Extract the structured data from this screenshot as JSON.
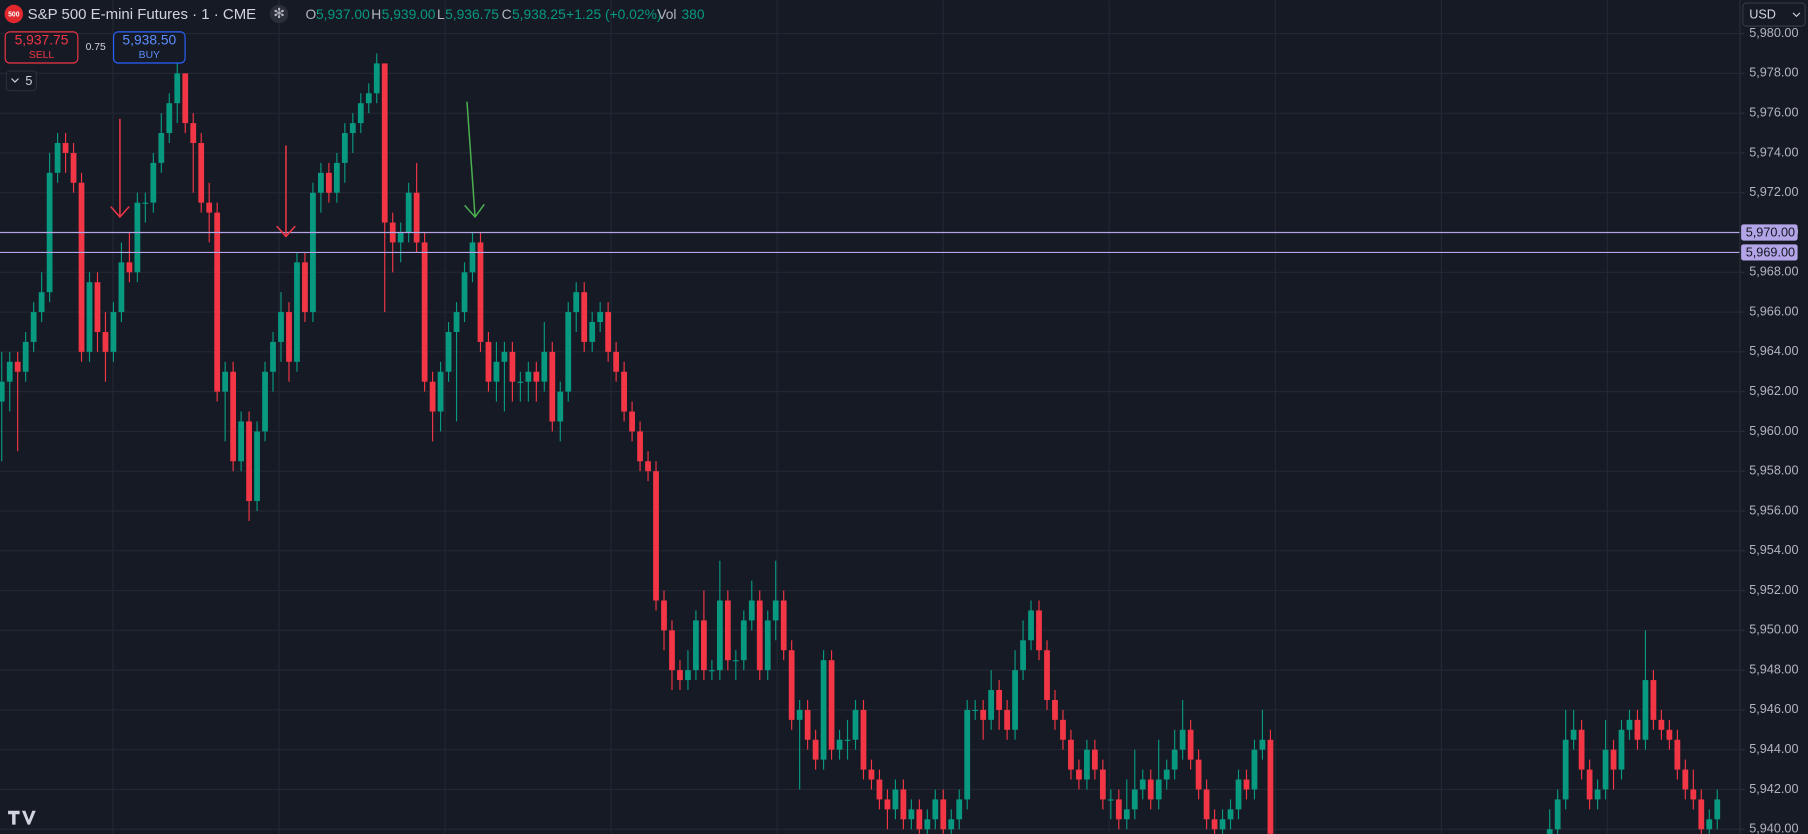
{
  "header": {
    "logo": "500",
    "title": "S&P 500 E-mini Futures · 1 · CME",
    "legend": [
      {
        "label": "O",
        "value": "5,937.00"
      },
      {
        "label": "H",
        "value": "5,939.00"
      },
      {
        "label": "L",
        "value": "5,936.75"
      },
      {
        "label": "C",
        "value": "5,938.25"
      }
    ],
    "change": "+1.25 (+0.02%)",
    "volume": {
      "label": "Vol",
      "value": "380"
    }
  },
  "trade": {
    "sell_price": "5,937.75",
    "sell_label": "SELL",
    "spread": "0.75",
    "buy_price": "5,938.50",
    "buy_label": "BUY"
  },
  "indicators_count": "5",
  "currency": "USD",
  "chart_data": {
    "type": "candlestick",
    "up_color": "#089981",
    "down_color": "#f23645",
    "grid": true,
    "ylim": [
      5939.77,
      5981.68
    ],
    "yticks": [
      {
        "value": 5940,
        "label": "5,940.00"
      },
      {
        "value": 5942,
        "label": "5,942.00"
      },
      {
        "value": 5944,
        "label": "5,944.00"
      },
      {
        "value": 5946,
        "label": "5,946.00"
      },
      {
        "value": 5948,
        "label": "5,948.00"
      },
      {
        "value": 5950,
        "label": "5,950.00"
      },
      {
        "value": 5952,
        "label": "5,952.00"
      },
      {
        "value": 5954,
        "label": "5,954.00"
      },
      {
        "value": 5956,
        "label": "5,956.00"
      },
      {
        "value": 5958,
        "label": "5,958.00"
      },
      {
        "value": 5960,
        "label": "5,960.00"
      },
      {
        "value": 5962,
        "label": "5,962.00"
      },
      {
        "value": 5964,
        "label": "5,964.00"
      },
      {
        "value": 5966,
        "label": "5,966.00"
      },
      {
        "value": 5968,
        "label": "5,968.00"
      },
      {
        "value": 5970,
        "label": "5,970.00"
      },
      {
        "value": 5972,
        "label": "5,972.00"
      },
      {
        "value": 5974,
        "label": "5,974.00"
      },
      {
        "value": 5976,
        "label": "5,976.00"
      },
      {
        "value": 5978,
        "label": "5,978.00"
      },
      {
        "value": 5980,
        "label": "5,980.00"
      }
    ],
    "hline_color": "#b2a4e6",
    "hlines": [
      {
        "value": 5970,
        "label": "5,970.00"
      },
      {
        "value": 5969,
        "label": "5,969.00"
      }
    ],
    "candles": [
      [
        5961.5,
        5964,
        5958.5,
        5962.5
      ],
      [
        5962.5,
        5964,
        5961,
        5963.5
      ],
      [
        5963.5,
        5964,
        5959,
        5963
      ],
      [
        5963,
        5965,
        5962.5,
        5964.5
      ],
      [
        5964.5,
        5966.5,
        5964,
        5966
      ],
      [
        5966,
        5968,
        5965.5,
        5967
      ],
      [
        5967,
        5974,
        5966.5,
        5973
      ],
      [
        5973,
        5975,
        5972.5,
        5974.5
      ],
      [
        5974.5,
        5975,
        5973,
        5974
      ],
      [
        5974,
        5974.5,
        5972,
        5972.5
      ],
      [
        5972.5,
        5973,
        5963.5,
        5964
      ],
      [
        5964,
        5968,
        5963.5,
        5967.5
      ],
      [
        5967.5,
        5968,
        5964,
        5965
      ],
      [
        5965,
        5966,
        5962.5,
        5964
      ],
      [
        5964,
        5966.5,
        5963.5,
        5966
      ],
      [
        5966,
        5969.5,
        5965.5,
        5968.5
      ],
      [
        5968.5,
        5970,
        5967.5,
        5968
      ],
      [
        5968,
        5972,
        5967.5,
        5971.5
      ],
      [
        5971.5,
        5972,
        5970.5,
        5971.5
      ],
      [
        5971.5,
        5974,
        5971,
        5973.5
      ],
      [
        5973.5,
        5976,
        5973,
        5975
      ],
      [
        5975,
        5977,
        5974.5,
        5976.5
      ],
      [
        5976.5,
        5978.5,
        5975.5,
        5978
      ],
      [
        5978,
        5978,
        5975,
        5975.5
      ],
      [
        5975.5,
        5976,
        5972,
        5974.5
      ],
      [
        5974.5,
        5975,
        5971,
        5971.5
      ],
      [
        5971.5,
        5972.5,
        5969.5,
        5971
      ],
      [
        5971,
        5971.5,
        5961.5,
        5962
      ],
      [
        5962,
        5963.5,
        5959.5,
        5963
      ],
      [
        5963,
        5963.5,
        5958,
        5958.5
      ],
      [
        5958.5,
        5961,
        5958,
        5960.5
      ],
      [
        5960.5,
        5961,
        5955.5,
        5956.5
      ],
      [
        5956.5,
        5960.5,
        5956,
        5960
      ],
      [
        5960,
        5963.5,
        5959.5,
        5963
      ],
      [
        5963,
        5965,
        5962,
        5964.5
      ],
      [
        5964.5,
        5967,
        5963.5,
        5966
      ],
      [
        5966,
        5966.5,
        5962.5,
        5963.5
      ],
      [
        5963.5,
        5969,
        5963,
        5968.5
      ],
      [
        5968.5,
        5969,
        5965.5,
        5966
      ],
      [
        5966,
        5972.5,
        5965.5,
        5972
      ],
      [
        5972,
        5973.5,
        5971,
        5973
      ],
      [
        5973,
        5973.5,
        5971.5,
        5972
      ],
      [
        5972,
        5974,
        5971.5,
        5973.5
      ],
      [
        5973.5,
        5975.5,
        5972.5,
        5975
      ],
      [
        5975,
        5976,
        5974,
        5975.5
      ],
      [
        5975.5,
        5977,
        5975,
        5976.5
      ],
      [
        5976.5,
        5977.5,
        5976,
        5977
      ],
      [
        5977,
        5979,
        5976.5,
        5978.5
      ],
      [
        5978.5,
        5978.5,
        5966,
        5970.5
      ],
      [
        5970.5,
        5971,
        5968,
        5969.5
      ],
      [
        5969.5,
        5970.5,
        5968.5,
        5970
      ],
      [
        5970,
        5972.5,
        5969.5,
        5972
      ],
      [
        5972,
        5973.5,
        5969,
        5969.5
      ],
      [
        5969.5,
        5970,
        5962,
        5962.5
      ],
      [
        5962.5,
        5963,
        5959.5,
        5961
      ],
      [
        5961,
        5963.5,
        5960,
        5963
      ],
      [
        5963,
        5965.5,
        5962.5,
        5965
      ],
      [
        5965,
        5966.5,
        5960.5,
        5966
      ],
      [
        5966,
        5968.5,
        5965.5,
        5968
      ],
      [
        5968,
        5970,
        5967.5,
        5969.5
      ],
      [
        5969.5,
        5970,
        5964,
        5964.5
      ],
      [
        5964.5,
        5965,
        5962,
        5962.5
      ],
      [
        5962.5,
        5964.5,
        5961.5,
        5963.5
      ],
      [
        5963.5,
        5964.5,
        5961,
        5964
      ],
      [
        5964,
        5964.5,
        5961.5,
        5962.5
      ],
      [
        5962.5,
        5963,
        5961.5,
        5962.5
      ],
      [
        5962.5,
        5963.5,
        5961.5,
        5963
      ],
      [
        5963,
        5963.5,
        5961.5,
        5962.5
      ],
      [
        5962.5,
        5965.5,
        5962,
        5964
      ],
      [
        5964,
        5964.5,
        5960,
        5960.5
      ],
      [
        5960.5,
        5962.5,
        5959.5,
        5962
      ],
      [
        5962,
        5966.5,
        5961.5,
        5966
      ],
      [
        5966,
        5967.5,
        5965,
        5967
      ],
      [
        5967,
        5967.5,
        5964,
        5964.5
      ],
      [
        5964.5,
        5966,
        5964,
        5965.5
      ],
      [
        5965.5,
        5966.5,
        5965,
        5966
      ],
      [
        5966,
        5966.5,
        5963.5,
        5964
      ],
      [
        5964,
        5964.5,
        5962.5,
        5963
      ],
      [
        5963,
        5963.5,
        5960.5,
        5961
      ],
      [
        5961,
        5961.5,
        5959.5,
        5960
      ],
      [
        5960,
        5960.5,
        5958,
        5958.5
      ],
      [
        5958.5,
        5959,
        5957.5,
        5958
      ],
      [
        5958,
        5958.5,
        5951,
        5951.5
      ],
      [
        5951.5,
        5952,
        5949,
        5950
      ],
      [
        5950,
        5950.5,
        5947,
        5948
      ],
      [
        5948,
        5948.5,
        5947,
        5947.5
      ],
      [
        5947.5,
        5949,
        5947,
        5948
      ],
      [
        5948,
        5951,
        5947.5,
        5950.5
      ],
      [
        5950.5,
        5952,
        5947.5,
        5948
      ],
      [
        5948,
        5948.5,
        5947.5,
        5948
      ],
      [
        5948,
        5953.5,
        5947.5,
        5951.5
      ],
      [
        5951.5,
        5952,
        5948,
        5948.5
      ],
      [
        5948.5,
        5949,
        5947.5,
        5948.5
      ],
      [
        5948.5,
        5951,
        5948,
        5950.5
      ],
      [
        5950.5,
        5952.5,
        5950,
        5951.5
      ],
      [
        5951.5,
        5952,
        5947.5,
        5948
      ],
      [
        5948,
        5951,
        5947.5,
        5950.5
      ],
      [
        5950.5,
        5953.5,
        5949.5,
        5951.5
      ],
      [
        5951.5,
        5952,
        5948.5,
        5949
      ],
      [
        5949,
        5949.5,
        5945,
        5945.5
      ],
      [
        5945.5,
        5946.5,
        5942,
        5946
      ],
      [
        5946,
        5946.5,
        5944,
        5944.5
      ],
      [
        5944.5,
        5945,
        5943,
        5943.5
      ],
      [
        5943.5,
        5949,
        5943,
        5948.5
      ],
      [
        5948.5,
        5949,
        5943.5,
        5944
      ],
      [
        5944,
        5945,
        5943.5,
        5944.5
      ],
      [
        5944.5,
        5945.5,
        5943.5,
        5944.5
      ],
      [
        5944.5,
        5946.5,
        5944,
        5946
      ],
      [
        5946,
        5946.5,
        5942.5,
        5943
      ],
      [
        5943,
        5943.5,
        5942,
        5942.5
      ],
      [
        5942.5,
        5943,
        5941,
        5941.5
      ],
      [
        5941.5,
        5942,
        5940,
        5941
      ],
      [
        5941,
        5942.5,
        5940.5,
        5942
      ],
      [
        5942,
        5942.5,
        5940,
        5940.5
      ],
      [
        5940.5,
        5941.5,
        5940,
        5941
      ],
      [
        5941,
        5941.5,
        5939.5,
        5940
      ],
      [
        5940,
        5941,
        5939.5,
        5940.5
      ],
      [
        5940.5,
        5942,
        5940,
        5941.5
      ],
      [
        5941.5,
        5942,
        5939.5,
        5940
      ],
      [
        5940,
        5941,
        5939.5,
        5940.5
      ],
      [
        5940.5,
        5942,
        5940,
        5941.5
      ],
      [
        5941.5,
        5946.5,
        5941,
        5946
      ],
      [
        5946,
        5946.5,
        5945.5,
        5946
      ],
      [
        5946,
        5946.5,
        5944.5,
        5945.5
      ],
      [
        5945.5,
        5948,
        5945,
        5947
      ],
      [
        5947,
        5947.5,
        5945,
        5946
      ],
      [
        5946,
        5946.5,
        5944.5,
        5945
      ],
      [
        5945,
        5949,
        5944.5,
        5948
      ],
      [
        5948,
        5950.5,
        5947.5,
        5949.5
      ],
      [
        5949.5,
        5951.5,
        5949,
        5951
      ],
      [
        5951,
        5951.5,
        5948.5,
        5949
      ],
      [
        5949,
        5949.5,
        5946,
        5946.5
      ],
      [
        5946.5,
        5947,
        5945,
        5945.5
      ],
      [
        5945.5,
        5946,
        5944,
        5944.5
      ],
      [
        5944.5,
        5945,
        5942.5,
        5943
      ],
      [
        5943,
        5943.5,
        5942,
        5942.5
      ],
      [
        5942.5,
        5944.5,
        5942,
        5944
      ],
      [
        5944,
        5944.5,
        5942.5,
        5943
      ],
      [
        5943,
        5943.5,
        5941,
        5941.5
      ],
      [
        5941.5,
        5942,
        5940.5,
        5941.5
      ],
      [
        5941.5,
        5942,
        5940,
        5940.5
      ],
      [
        5940.5,
        5942.5,
        5940,
        5941
      ],
      [
        5941,
        5944,
        5940.5,
        5942
      ],
      [
        5942,
        5943,
        5941.5,
        5942.5
      ],
      [
        5942.5,
        5943,
        5941,
        5941.5
      ],
      [
        5941.5,
        5944.5,
        5941,
        5942.5
      ],
      [
        5942.5,
        5943.5,
        5942,
        5943
      ],
      [
        5943,
        5945,
        5942.5,
        5944
      ],
      [
        5944,
        5946.5,
        5943.5,
        5945
      ],
      [
        5945,
        5945.5,
        5943,
        5943.5
      ],
      [
        5943.5,
        5944,
        5941.5,
        5942
      ],
      [
        5942,
        5942.5,
        5940,
        5940.5
      ],
      [
        5940.5,
        5941,
        5939.5,
        5940
      ],
      [
        5940,
        5941,
        5939.5,
        5940.5
      ],
      [
        5940.5,
        5941.5,
        5940,
        5941
      ],
      [
        5941,
        5943,
        5940.5,
        5942.5
      ],
      [
        5942.5,
        5943,
        5941.5,
        5942
      ],
      [
        5942,
        5944.5,
        5941.5,
        5944
      ],
      [
        5944,
        5946,
        5943.5,
        5944.5
      ],
      [
        5944.5,
        5945,
        5939.5,
        5939.5
      ],
      null,
      null,
      null,
      null,
      null,
      null,
      null,
      null,
      null,
      null,
      null,
      null,
      null,
      null,
      null,
      null,
      null,
      null,
      null,
      null,
      null,
      null,
      null,
      null,
      null,
      null,
      null,
      null,
      null,
      null,
      null,
      null,
      null,
      null,
      [
        5939.5,
        5941,
        5939.5,
        5940
      ],
      [
        5940,
        5942,
        5939.5,
        5941.5
      ],
      [
        5941.5,
        5946,
        5941,
        5944.5
      ],
      [
        5944.5,
        5946,
        5944,
        5945
      ],
      [
        5945,
        5945.5,
        5942.5,
        5943
      ],
      [
        5943,
        5943.5,
        5941,
        5941.5
      ],
      [
        5941.5,
        5942.5,
        5941,
        5942
      ],
      [
        5942,
        5945.5,
        5941.5,
        5944
      ],
      [
        5944,
        5944.5,
        5942,
        5943
      ],
      [
        5943,
        5945.5,
        5942.5,
        5945
      ],
      [
        5945,
        5946,
        5944.5,
        5945.5
      ],
      [
        5945.5,
        5946,
        5944,
        5944.5
      ],
      [
        5944.5,
        5950,
        5944,
        5947.5
      ],
      [
        5947.5,
        5948,
        5945,
        5945.5
      ],
      [
        5945.5,
        5946,
        5944.5,
        5945
      ],
      [
        5945,
        5945.5,
        5944,
        5944.5
      ],
      [
        5944.5,
        5945,
        5942.5,
        5943
      ],
      [
        5943,
        5943.5,
        5941.5,
        5942
      ],
      [
        5942,
        5943,
        5941,
        5941.5
      ],
      [
        5941.5,
        5942,
        5939.5,
        5940
      ],
      [
        5940,
        5941,
        5939.5,
        5940.5
      ],
      [
        5940.5,
        5942,
        5940,
        5941.5
      ]
    ]
  }
}
